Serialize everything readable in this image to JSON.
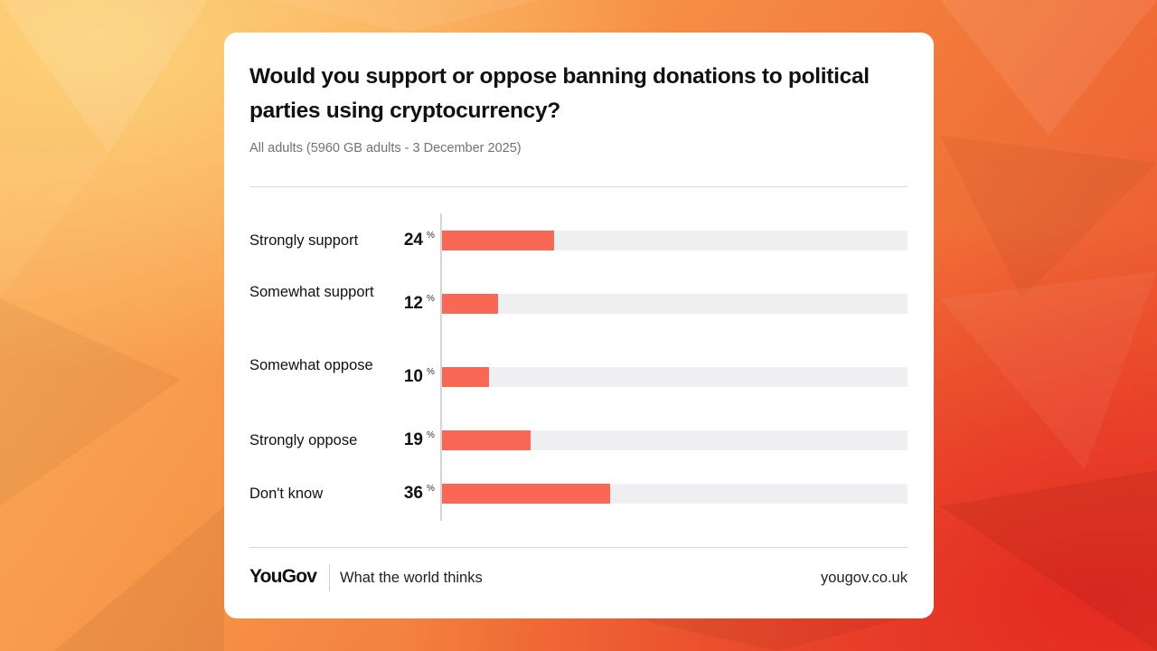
{
  "card": {
    "title": "Would you support or oppose banning donations to political parties using cryptocurrency?",
    "subtitle": "All adults (5960 GB adults - 3 December 2025)"
  },
  "chart_data": {
    "type": "bar",
    "orientation": "horizontal",
    "title": "Would you support or oppose banning donations to political parties using cryptocurrency?",
    "subtitle": "All adults (5960 GB adults - 3 December 2025)",
    "categories": [
      "Strongly support",
      "Somewhat support",
      "Somewhat oppose",
      "Strongly oppose",
      "Don't know"
    ],
    "values": [
      24,
      12,
      10,
      19,
      36
    ],
    "value_suffix": "%",
    "xlim": [
      0,
      100
    ],
    "bar_color": "#f86855",
    "track_color": "#efeff2"
  },
  "footer": {
    "logo": "YouGov",
    "tagline": "What the world thinks",
    "url": "yougov.co.uk"
  }
}
